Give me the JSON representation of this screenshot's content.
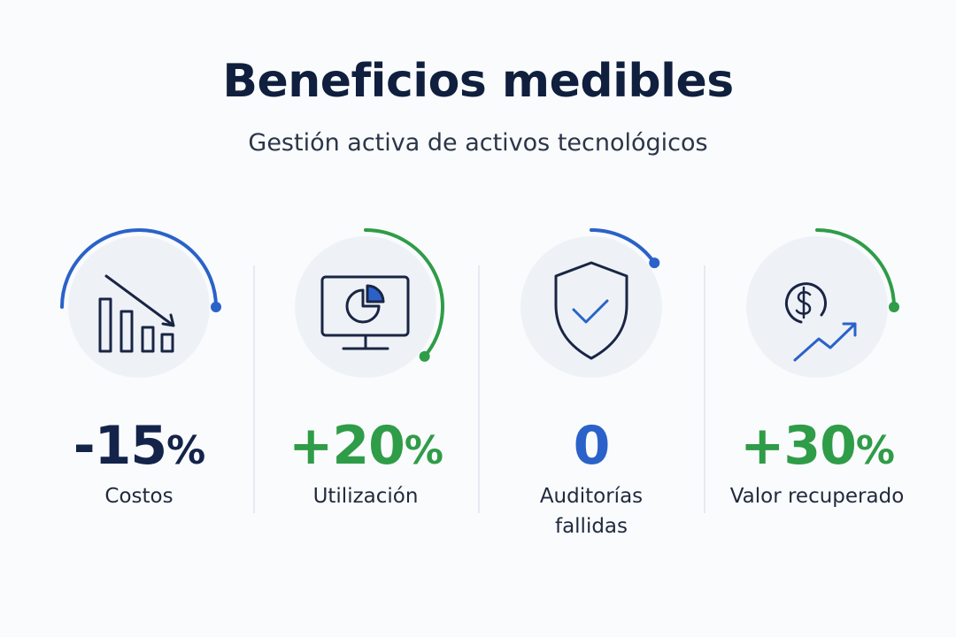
{
  "header": {
    "title": "Beneficios medibles",
    "subtitle": "Gestión activa de activos tecnológicos"
  },
  "metrics": [
    {
      "value": "-15",
      "unit": "%",
      "label": "Costos",
      "color": "#14234a"
    },
    {
      "value": "+20",
      "unit": "%",
      "label": "Utilización",
      "color": "#2f9c48"
    },
    {
      "value": "0",
      "label": "Auditorías fallidas",
      "color": "#2a62c9"
    },
    {
      "value": "+30",
      "unit": "%",
      "label": "Valor recuperado",
      "color": "#2f9c48"
    }
  ]
}
